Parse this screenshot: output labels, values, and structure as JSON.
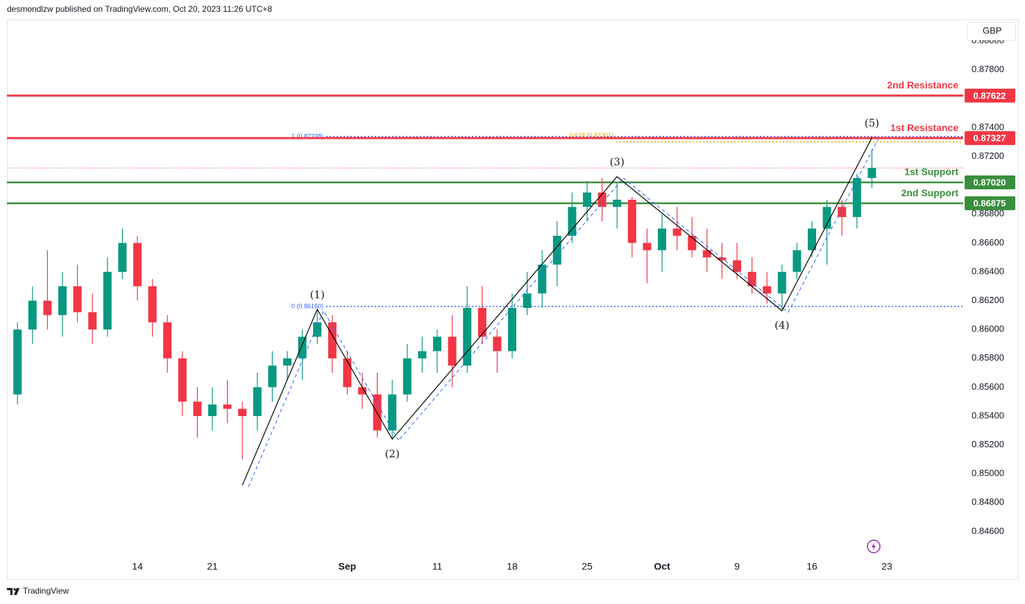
{
  "header": {
    "publisher": "desmondlzw published on TradingView.com, Oct 20, 2023 11:26 UTC+8",
    "currency": "GBP",
    "footer": "TradingView"
  },
  "chart_data": {
    "type": "candlestick",
    "categories": [
      null,
      null,
      null,
      null,
      null,
      null,
      null,
      null,
      "14",
      null,
      null,
      null,
      null,
      "21",
      null,
      null,
      null,
      null,
      null,
      null,
      null,
      null,
      "Sep",
      null,
      null,
      null,
      null,
      null,
      "11",
      null,
      null,
      null,
      null,
      "18",
      null,
      null,
      null,
      null,
      "25",
      null,
      null,
      null,
      null,
      "Oct",
      null,
      null,
      null,
      null,
      "9",
      null,
      null,
      null,
      null,
      "16",
      null,
      null,
      null,
      null,
      "23",
      null,
      null,
      null,
      null
    ],
    "open": [
      0.8555,
      0.86,
      0.862,
      0.861,
      0.863,
      0.8612,
      0.86,
      0.864,
      0.866,
      0.863,
      0.8605,
      0.858,
      0.855,
      0.854,
      0.8548,
      0.8545,
      0.854,
      0.856,
      0.8575,
      0.858,
      0.8595,
      0.8605,
      0.858,
      0.856,
      0.8555,
      0.853,
      0.8555,
      0.858,
      0.8585,
      0.8595,
      0.8575,
      0.8615,
      0.8595,
      0.8585,
      0.8615,
      0.8625,
      0.8645,
      0.8665,
      0.8685,
      0.8695,
      0.8685,
      0.869,
      0.866,
      0.8655,
      0.867,
      0.8665,
      0.8655,
      0.865,
      0.8648,
      0.864,
      0.863,
      0.8625,
      0.864,
      0.8655,
      0.867,
      0.8685,
      0.8678,
      0.8705,
      null,
      null,
      null,
      null,
      null
    ],
    "high": [
      0.8605,
      0.863,
      0.8655,
      0.864,
      0.8645,
      0.8625,
      0.865,
      0.867,
      0.8665,
      0.8635,
      0.861,
      0.8585,
      0.856,
      0.856,
      0.8565,
      0.855,
      0.857,
      0.8585,
      0.8585,
      0.86,
      0.8614,
      0.861,
      0.8585,
      0.857,
      0.857,
      0.8565,
      0.859,
      0.8595,
      0.86,
      0.861,
      0.863,
      0.863,
      0.86,
      0.8625,
      0.864,
      0.8655,
      0.8675,
      0.8695,
      0.8703,
      0.8705,
      0.8702,
      0.8692,
      0.867,
      0.868,
      0.8685,
      0.8678,
      0.867,
      0.866,
      0.866,
      0.865,
      0.864,
      0.8645,
      0.866,
      0.8675,
      0.869,
      0.869,
      0.8708,
      0.8725,
      null,
      null,
      null,
      null,
      null
    ],
    "low": [
      0.8548,
      0.859,
      0.86,
      0.8595,
      0.8605,
      0.859,
      0.8595,
      0.8635,
      0.862,
      0.8595,
      0.857,
      0.854,
      0.8525,
      0.853,
      0.8535,
      0.851,
      0.853,
      0.855,
      0.8565,
      0.8565,
      0.859,
      0.857,
      0.8555,
      0.8545,
      0.8525,
      0.8524,
      0.855,
      0.857,
      0.857,
      0.856,
      0.857,
      0.859,
      0.857,
      0.858,
      0.861,
      0.8615,
      0.863,
      0.866,
      0.8675,
      0.8675,
      0.867,
      0.865,
      0.8632,
      0.864,
      0.8655,
      0.865,
      0.864,
      0.8635,
      0.8635,
      0.8625,
      0.8618,
      0.8614,
      0.8635,
      0.865,
      0.8645,
      0.8665,
      0.867,
      0.8698,
      null,
      null,
      null,
      null,
      null
    ],
    "close": [
      0.86,
      0.862,
      0.861,
      0.863,
      0.8612,
      0.86,
      0.864,
      0.866,
      0.863,
      0.8605,
      0.858,
      0.855,
      0.854,
      0.8548,
      0.8545,
      0.854,
      0.856,
      0.8575,
      0.858,
      0.8595,
      0.8605,
      0.858,
      0.856,
      0.8555,
      0.853,
      0.8555,
      0.858,
      0.8585,
      0.8595,
      0.8575,
      0.8615,
      0.8595,
      0.8585,
      0.8615,
      0.8625,
      0.8645,
      0.8665,
      0.8685,
      0.8695,
      0.8685,
      0.869,
      0.866,
      0.8655,
      0.867,
      0.8665,
      0.8655,
      0.865,
      0.8648,
      0.864,
      0.863,
      0.8625,
      0.864,
      0.8655,
      0.867,
      0.8685,
      0.8678,
      0.8705,
      0.8712,
      null,
      null,
      null,
      null,
      null
    ],
    "up_color": "#089981",
    "down_color": "#f23645",
    "ylim": [
      0.8427,
      0.8815
    ],
    "yticks": [
      {
        "value": 0.846,
        "label": "0.84600"
      },
      {
        "value": 0.848,
        "label": "0.84800"
      },
      {
        "value": 0.85,
        "label": "0.85000"
      },
      {
        "value": 0.852,
        "label": "0.85200"
      },
      {
        "value": 0.854,
        "label": "0.85400"
      },
      {
        "value": 0.856,
        "label": "0.85600"
      },
      {
        "value": 0.858,
        "label": "0.85800"
      },
      {
        "value": 0.86,
        "label": "0.86000"
      },
      {
        "value": 0.862,
        "label": "0.86200"
      },
      {
        "value": 0.864,
        "label": "0.86400"
      },
      {
        "value": 0.866,
        "label": "0.86600"
      },
      {
        "value": 0.868,
        "label": "0.86800"
      },
      {
        "value": 0.87,
        "label": "0.87000"
      },
      {
        "value": 0.872,
        "label": "0.87200"
      },
      {
        "value": 0.874,
        "label": "0.87400"
      },
      {
        "value": 0.876,
        "label": "0.87600"
      },
      {
        "value": 0.878,
        "label": "0.87800"
      },
      {
        "value": 0.88,
        "label": "0.88000"
      }
    ],
    "grid": false,
    "levels": {
      "names": [
        "2nd Resistance",
        "1st Resistance",
        "1st Support",
        "2nd Support"
      ],
      "values": [
        0.87622,
        0.87327,
        0.8702,
        0.86875
      ],
      "value_labels": [
        "0.87622",
        "0.87327",
        "0.87020",
        "0.86875"
      ],
      "colors": [
        "#f23645",
        "#f23645",
        "#388e3c",
        "#388e3c"
      ]
    },
    "fib": {
      "labels": [
        "1 (0.87338)",
        "0 (0.86160)",
        "0.618 (0.87301)"
      ],
      "values": [
        0.87338,
        0.8616,
        0.87301
      ],
      "colors": [
        "#2962ff",
        "#2962ff",
        "#f7a600"
      ]
    },
    "wave": {
      "labels": [
        null,
        "(1)",
        "(2)",
        "(3)",
        "(4)",
        "(5)"
      ],
      "x": [
        15,
        20,
        25,
        40,
        51,
        57
      ],
      "values": [
        0.8492,
        0.8614,
        0.8524,
        0.8706,
        0.8613,
        0.8733
      ],
      "color": "#000000"
    }
  }
}
